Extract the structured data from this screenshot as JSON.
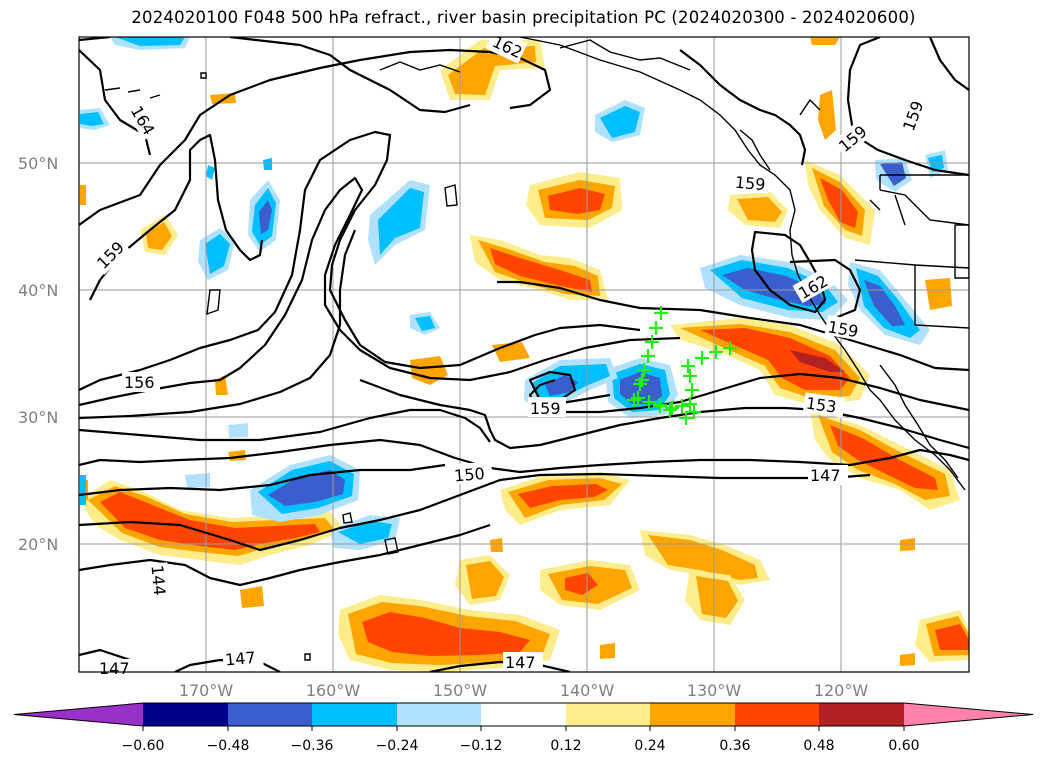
{
  "title": "2024020100 F048 500 hPa refract., river basin precipitation PC (2024020300 - 2024020600)",
  "lat_labels": [
    "50°N",
    "40°N",
    "30°N",
    "20°N"
  ],
  "lon_labels": [
    "170°W",
    "160°W",
    "150°W",
    "140°W",
    "130°W",
    "120°W"
  ],
  "contour_labels": [
    "162",
    "164",
    "159",
    "159",
    "159",
    "159",
    "156",
    "159",
    "162",
    "159",
    "153",
    "150",
    "147",
    "144",
    "147",
    "147",
    "147"
  ],
  "colorbar": {
    "ticks": [
      "−0.60",
      "−0.48",
      "−0.36",
      "−0.24",
      "−0.12",
      "0.12",
      "0.24",
      "0.36",
      "0.48",
      "0.60"
    ],
    "colors": [
      "#9b30c8",
      "#00008b",
      "#3a5fcd",
      "#00bfff",
      "#b0e2ff",
      "#ffffff",
      "#ffec8b",
      "#ffa500",
      "#ff4500",
      "#b22222",
      "#ff82ab"
    ]
  },
  "marker_count": 24
}
